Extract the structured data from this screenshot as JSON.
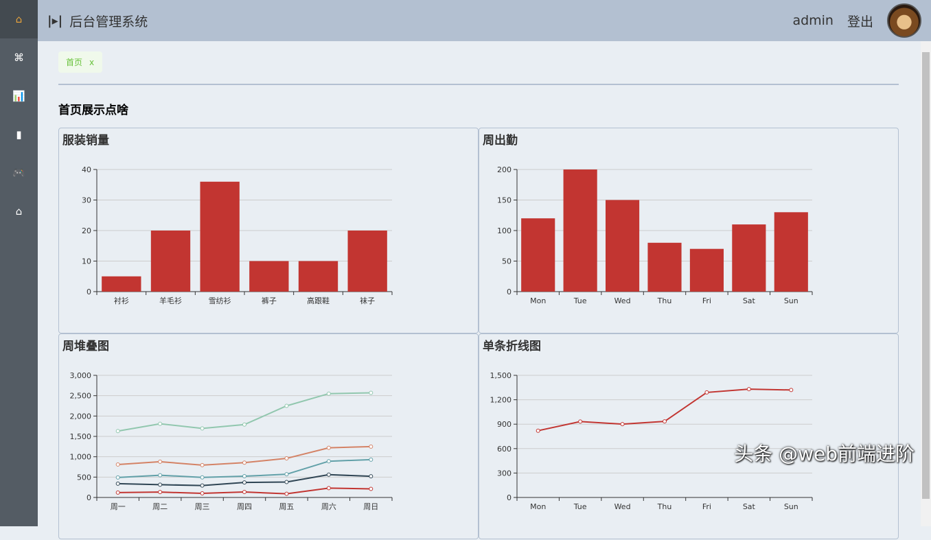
{
  "sidebar": {
    "items": [
      {
        "icon": "home-icon"
      },
      {
        "icon": "grid-icon"
      },
      {
        "icon": "chart-icon"
      },
      {
        "icon": "document-icon"
      },
      {
        "icon": "gamepad-icon"
      },
      {
        "icon": "home-icon"
      }
    ]
  },
  "header": {
    "title": "后台管理系统",
    "user": "admin",
    "logout": "登出"
  },
  "tags": [
    {
      "label": "首页",
      "close": "x"
    }
  ],
  "page_title": "首页展示点啥",
  "watermark": "头条 @web前端进阶",
  "colors": {
    "red": "#c23531",
    "dark": "#2f4554",
    "teal": "#61a0a8",
    "orange": "#d48265",
    "green": "#91c7ae"
  },
  "chart_data": [
    {
      "title": "服装销量",
      "type": "bar",
      "categories": [
        "衬衫",
        "羊毛衫",
        "雪纺衫",
        "裤子",
        "高跟鞋",
        "袜子"
      ],
      "values": [
        5,
        20,
        36,
        10,
        10,
        20
      ],
      "ylim": [
        0,
        40
      ],
      "yticks": [
        "0",
        "10",
        "20",
        "30",
        "40"
      ]
    },
    {
      "title": "周出勤",
      "type": "bar",
      "categories": [
        "Mon",
        "Tue",
        "Wed",
        "Thu",
        "Fri",
        "Sat",
        "Sun"
      ],
      "values": [
        120,
        200,
        150,
        80,
        70,
        110,
        130
      ],
      "ylim": [
        0,
        200
      ],
      "yticks": [
        "0",
        "50",
        "100",
        "150",
        "200"
      ]
    },
    {
      "title": "周堆叠图",
      "type": "line",
      "stacked": true,
      "categories": [
        "周一",
        "周二",
        "周三",
        "周四",
        "周五",
        "周六",
        "周日"
      ],
      "ylim": [
        0,
        3000
      ],
      "yticks": [
        "0",
        "500",
        "1,000",
        "1,500",
        "2,000",
        "2,500",
        "3,000"
      ],
      "series": [
        {
          "values": [
            120,
            132,
            101,
            134,
            90,
            230,
            210
          ],
          "color": "#c23531"
        },
        {
          "values": [
            220,
            182,
            191,
            234,
            290,
            330,
            310
          ],
          "color": "#2f4554"
        },
        {
          "values": [
            150,
            232,
            201,
            154,
            190,
            330,
            410
          ],
          "color": "#61a0a8"
        },
        {
          "values": [
            320,
            332,
            301,
            334,
            390,
            330,
            320
          ],
          "color": "#d48265"
        },
        {
          "values": [
            820,
            932,
            901,
            934,
            1290,
            1330,
            1320
          ],
          "color": "#91c7ae"
        }
      ]
    },
    {
      "title": "单条折线图",
      "type": "line",
      "categories": [
        "Mon",
        "Tue",
        "Wed",
        "Thu",
        "Fri",
        "Sat",
        "Sun"
      ],
      "ylim": [
        0,
        1500
      ],
      "yticks": [
        "0",
        "300",
        "600",
        "900",
        "1,200",
        "1,500"
      ],
      "series": [
        {
          "values": [
            820,
            932,
            901,
            934,
            1290,
            1330,
            1320
          ],
          "color": "#c23531"
        }
      ]
    }
  ]
}
